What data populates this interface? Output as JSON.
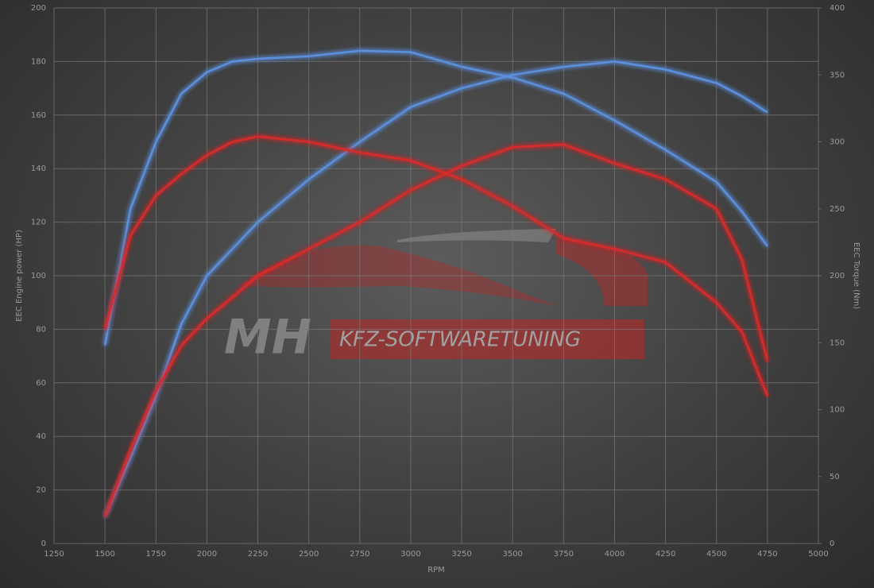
{
  "chart_data": {
    "type": "line",
    "y_label": "EEC Engine power (HP)",
    "y2_label": "EEC Torque (Nm)",
    "x_label": "RPM",
    "watermark": {
      "logo": "MH",
      "text": "KFZ-SOFTWARETUNING"
    },
    "x": [
      1500,
      1625,
      1750,
      1875,
      2000,
      2125,
      2250,
      2500,
      2750,
      3000,
      3250,
      3500,
      3750,
      4000,
      4250,
      4500,
      4625,
      4750
    ],
    "series": [
      {
        "color": "#5b8fdc",
        "values": [
          10,
          32,
          55,
          82,
          100,
          110,
          120,
          136,
          150,
          163,
          170,
          175,
          178,
          180,
          177,
          172,
          167,
          161
        ]
      },
      {
        "color": "#5b8fdc",
        "axis": "y2",
        "values": [
          148,
          250,
          300,
          336,
          352,
          360,
          362,
          364,
          368,
          367,
          356,
          348,
          336,
          316,
          294,
          270,
          248,
          222
        ]
      },
      {
        "color": "#d82a2a",
        "values": [
          10,
          35,
          57,
          74,
          84,
          92,
          100,
          110,
          120,
          132,
          141,
          148,
          149,
          142,
          136,
          125,
          106,
          68
        ]
      },
      {
        "color": "#d82a2a",
        "axis": "y2",
        "values": [
          160,
          230,
          260,
          276,
          290,
          300,
          304,
          300,
          292,
          286,
          272,
          252,
          228,
          220,
          210,
          180,
          158,
          110
        ]
      }
    ],
    "xlim": [
      1250,
      5000
    ],
    "xticks": [
      1250,
      1500,
      1750,
      2000,
      2250,
      2500,
      2750,
      3000,
      3250,
      3500,
      3750,
      4000,
      4250,
      4500,
      4750,
      5000
    ],
    "ylim": [
      0,
      200
    ],
    "yticks": [
      0,
      20,
      40,
      60,
      80,
      100,
      120,
      140,
      160,
      180,
      200
    ],
    "y2lim": [
      0,
      400
    ],
    "y2ticks": [
      0,
      50,
      100,
      150,
      200,
      250,
      300,
      350,
      400
    ],
    "grid": true
  }
}
